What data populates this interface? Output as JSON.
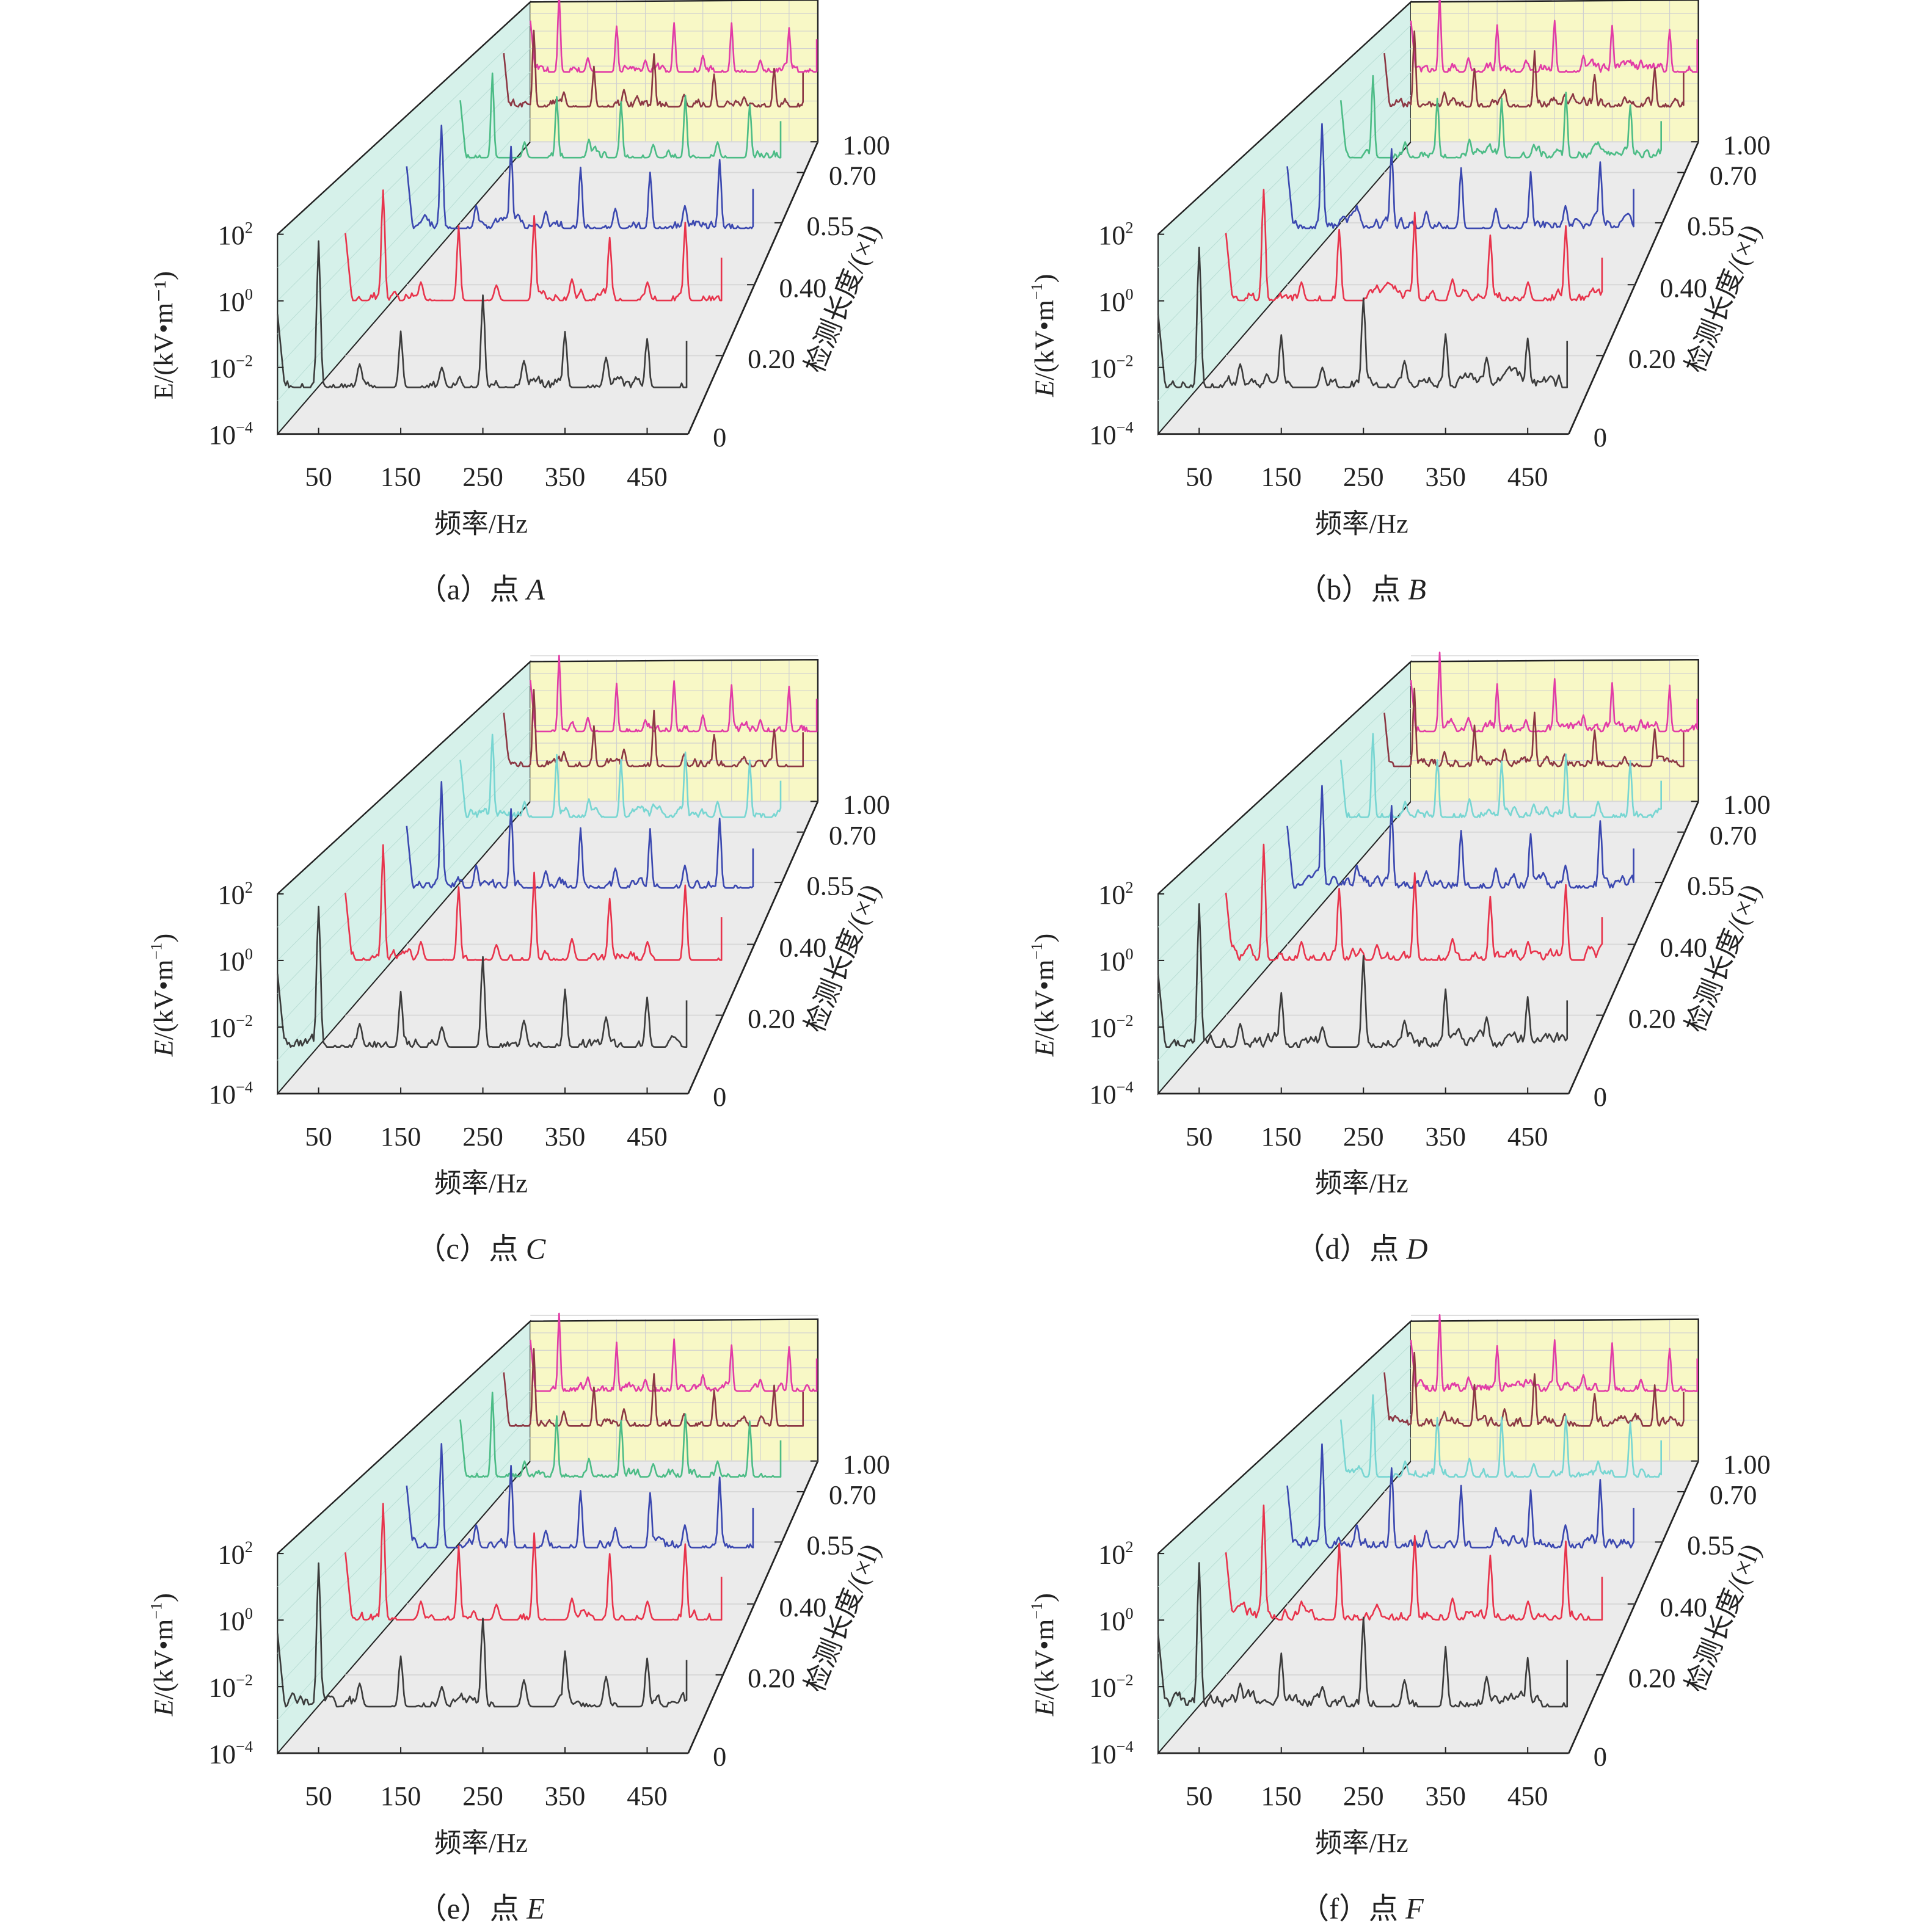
{
  "chart_data": [
    {
      "id": "a",
      "caption": "（a）点 ",
      "point": "A",
      "seed": 1
    },
    {
      "id": "b",
      "caption": "（b）点 ",
      "point": "B",
      "seed": 2
    },
    {
      "id": "c",
      "caption": "（c）点 ",
      "point": "C",
      "seed": 3
    },
    {
      "id": "d",
      "caption": "（d）点 ",
      "point": "D",
      "seed": 4
    },
    {
      "id": "e",
      "caption": "（e）点 ",
      "point": "E",
      "seed": 5
    },
    {
      "id": "f",
      "caption": "（f）点 ",
      "point": "F",
      "seed": 6
    }
  ],
  "common": {
    "type": "line",
    "subtype": "3d-waterfall",
    "xlabel": "频率/Hz",
    "ylabel": "E/(kV•m⁻¹)",
    "ylabel_var": "E",
    "ylabel_unit": "/(kV•m",
    "ylabel_sup": "−1",
    "zlabel": "检测长度/(×l)",
    "xlim": [
      0,
      500
    ],
    "xticks": [
      50,
      150,
      250,
      350,
      450
    ],
    "yscale": "log",
    "ylim_exp": [
      -4,
      2
    ],
    "yticks": [
      {
        "base": "10",
        "exp": "−4",
        "v": -4
      },
      {
        "base": "10",
        "exp": "−2",
        "v": -2
      },
      {
        "base": "10",
        "exp": "0",
        "v": 0
      },
      {
        "base": "10",
        "exp": "2",
        "v": 2
      }
    ],
    "zticks": [
      "0",
      "0.20",
      "0.40",
      "0.55",
      "0.70",
      "1.00"
    ],
    "harmonics_hz": [
      50,
      150,
      250,
      350,
      450
    ],
    "minor_hz": [
      100,
      200,
      300,
      400
    ],
    "series": [
      {
        "name": "0",
        "color": "#3c3c3c",
        "baseline_log": -2.6,
        "peaks_log": [
          1.7,
          -1.0,
          0.1,
          -0.9,
          -1.1
        ],
        "minor_log": [
          -1.9,
          -2.0,
          -1.8,
          -1.7
        ]
      },
      {
        "name": "0.20",
        "color": "#e8344c",
        "baseline_log": -2.2,
        "peaks_log": [
          1.5,
          0.2,
          0.6,
          -0.1,
          0.3
        ],
        "minor_log": [
          -1.6,
          -1.7,
          -1.5,
          -1.6
        ]
      },
      {
        "name": "0.40",
        "color": "#3b48b0",
        "baseline_log": -2.0,
        "peaks_log": [
          1.7,
          0.9,
          0.1,
          0.0,
          0.4
        ],
        "minor_log": [
          -1.2,
          -1.4,
          -1.3,
          -1.2
        ]
      },
      {
        "name": "0.55",
        "color": "#4cbc86",
        "alt_color": "#78d6d2",
        "baseline_log": -1.5,
        "peaks_log": [
          1.7,
          0.8,
          0.7,
          0.9,
          0.6
        ],
        "minor_log": [
          -0.9,
          -0.8,
          -1.0,
          -0.9
        ]
      },
      {
        "name": "0.70",
        "color": "#8c3844",
        "baseline_log": -1.3,
        "peaks_log": [
          1.8,
          0.3,
          0.9,
          0.1,
          0.3
        ],
        "minor_log": [
          -0.7,
          -0.6,
          -0.8,
          -0.9
        ]
      },
      {
        "name": "1.00",
        "color": "#e23ca6",
        "baseline_log": -1.0,
        "peaks_log": [
          2.3,
          1.0,
          1.2,
          1.0,
          0.9
        ],
        "minor_log": [
          -0.4,
          -0.5,
          -0.3,
          -0.5
        ]
      }
    ],
    "alt_color_panels": [
      "c",
      "d",
      "f"
    ],
    "colors": {
      "left_wall": "#d6f1ea",
      "back_wall": "#f8f8c6",
      "floor": "#ebebeb",
      "grid": "#d0d0d0"
    }
  }
}
